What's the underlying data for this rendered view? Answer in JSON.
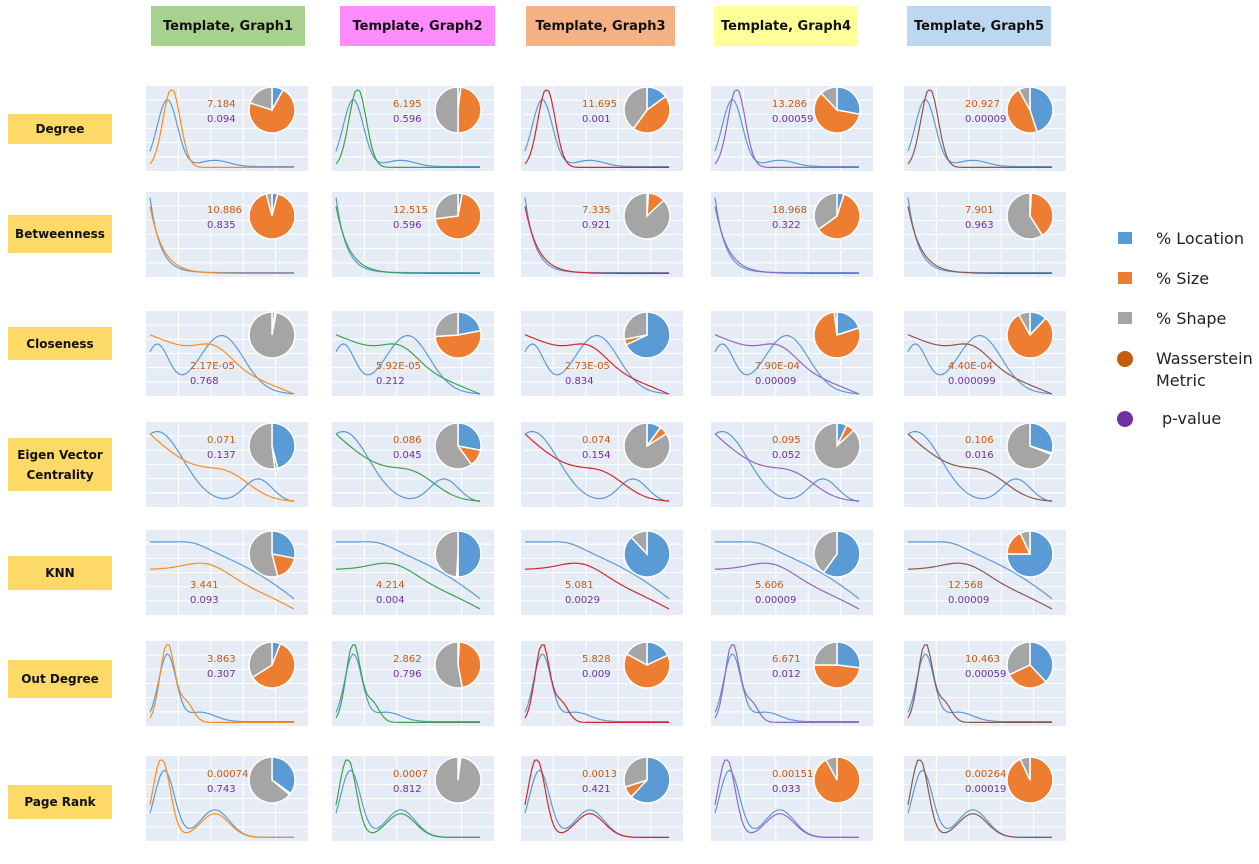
{
  "legend": {
    "location": "% Location",
    "size": "% Size",
    "shape": "% Shape",
    "wasserstein": "Wasserstein Metric",
    "pvalue": "p-value",
    "colors": {
      "location": "#5b9bd5",
      "size": "#ed7d31",
      "shape": "#a5a5a5",
      "wasserstein": "#c55a11",
      "pvalue": "#7030a0"
    }
  },
  "templates": [
    {
      "label": "Template, Graph1",
      "color": "#a9d18e",
      "line_color": "#ff8c1a"
    },
    {
      "label": "Template, Graph2",
      "color": "#ff8cff",
      "line_color": "#3ca34a"
    },
    {
      "label": "Template, Graph3",
      "color": "#f4b183",
      "line_color": "#d62728"
    },
    {
      "label": "Template, Graph4",
      "color": "#ffff99",
      "line_color": "#9467bd"
    },
    {
      "label": "Template, Graph5",
      "color": "#bdd7ee",
      "line_color": "#8c564b"
    }
  ],
  "metrics": [
    "Degree",
    "Betweenness",
    "Closeness",
    "Eigen Vector Centrality",
    "KNN",
    "Out Degree",
    "Page Rank"
  ],
  "chart_data": [
    {
      "type": "scatter",
      "row": "Degree",
      "col": 1,
      "title": "",
      "series": [
        {
          "name": "",
          "values": []
        }
      ],
      "wasserstein": "7.184",
      "pvalue": "0.094",
      "pie": {
        "location": 8,
        "size": 72,
        "shape": 20
      }
    },
    {
      "type": "scatter",
      "row": "Degree",
      "col": 2,
      "wasserstein": "6.195",
      "pvalue": "0.596",
      "pie": {
        "location": 2,
        "size": 48,
        "shape": 50
      }
    },
    {
      "type": "scatter",
      "row": "Degree",
      "col": 3,
      "wasserstein": "11.695",
      "pvalue": "0.001",
      "pie": {
        "location": 15,
        "size": 45,
        "shape": 40
      }
    },
    {
      "type": "scatter",
      "row": "Degree",
      "col": 4,
      "wasserstein": "13.286",
      "pvalue": "0.00059",
      "pie": {
        "location": 28,
        "size": 60,
        "shape": 12
      }
    },
    {
      "type": "scatter",
      "row": "Degree",
      "col": 5,
      "wasserstein": "20.927",
      "pvalue": "0.00009",
      "pie": {
        "location": 45,
        "size": 47,
        "shape": 8
      }
    },
    {
      "type": "scatter",
      "row": "Betweenness",
      "col": 1,
      "wasserstein": "10.886",
      "pvalue": "0.835",
      "pie": {
        "location": 4,
        "size": 92,
        "shape": 4
      }
    },
    {
      "type": "scatter",
      "row": "Betweenness",
      "col": 2,
      "wasserstein": "12.515",
      "pvalue": "0.596",
      "pie": {
        "location": 3,
        "size": 70,
        "shape": 27
      }
    },
    {
      "type": "scatter",
      "row": "Betweenness",
      "col": 3,
      "wasserstein": "7.335",
      "pvalue": "0.921",
      "pie": {
        "location": 1,
        "size": 12,
        "shape": 87
      }
    },
    {
      "type": "scatter",
      "row": "Betweenness",
      "col": 4,
      "wasserstein": "18.968",
      "pvalue": "0.322",
      "pie": {
        "location": 5,
        "size": 60,
        "shape": 35
      }
    },
    {
      "type": "scatter",
      "row": "Betweenness",
      "col": 5,
      "wasserstein": "7.901",
      "pvalue": "0.963",
      "pie": {
        "location": 1,
        "size": 40,
        "shape": 59
      }
    },
    {
      "type": "scatter",
      "row": "Closeness",
      "col": 1,
      "wasserstein": "2.17E-05",
      "pvalue": "0.768",
      "pie": {
        "location": 2,
        "size": 1,
        "shape": 97
      }
    },
    {
      "type": "scatter",
      "row": "Closeness",
      "col": 2,
      "wasserstein": "5.92E-05",
      "pvalue": "0.212",
      "pie": {
        "location": 22,
        "size": 52,
        "shape": 26
      }
    },
    {
      "type": "scatter",
      "row": "Closeness",
      "col": 3,
      "wasserstein": "2.73E-05",
      "pvalue": "0.834",
      "pie": {
        "location": 68,
        "size": 4,
        "shape": 28
      }
    },
    {
      "type": "scatter",
      "row": "Closeness",
      "col": 4,
      "wasserstein": "7.90E-04",
      "pvalue": "0.00009",
      "pie": {
        "location": 20,
        "size": 78,
        "shape": 2
      }
    },
    {
      "type": "scatter",
      "row": "Closeness",
      "col": 5,
      "wasserstein": "4.40E-04",
      "pvalue": "0.000099",
      "pie": {
        "location": 12,
        "size": 80,
        "shape": 8
      }
    },
    {
      "type": "scatter",
      "row": "Eigen Vector Centrality",
      "col": 1,
      "wasserstein": "0.071",
      "pvalue": "0.137",
      "pie": {
        "location": 46,
        "size": 2,
        "shape": 52
      }
    },
    {
      "type": "scatter",
      "row": "Eigen Vector Centrality",
      "col": 2,
      "wasserstein": "0.086",
      "pvalue": "0.045",
      "pie": {
        "location": 28,
        "size": 12,
        "shape": 60
      }
    },
    {
      "type": "scatter",
      "row": "Eigen Vector Centrality",
      "col": 3,
      "wasserstein": "0.074",
      "pvalue": "0.154",
      "pie": {
        "location": 10,
        "size": 6,
        "shape": 84
      }
    },
    {
      "type": "scatter",
      "row": "Eigen Vector Centrality",
      "col": 4,
      "wasserstein": "0.095",
      "pvalue": "0.052",
      "pie": {
        "location": 7,
        "size": 6,
        "shape": 87
      }
    },
    {
      "type": "scatter",
      "row": "Eigen Vector Centrality",
      "col": 5,
      "wasserstein": "0.106",
      "pvalue": "0.016",
      "pie": {
        "location": 30,
        "size": 1,
        "shape": 69
      }
    },
    {
      "type": "scatter",
      "row": "KNN",
      "col": 1,
      "wasserstein": "3.441",
      "pvalue": "0.093",
      "pie": {
        "location": 28,
        "size": 18,
        "shape": 54
      }
    },
    {
      "type": "scatter",
      "row": "KNN",
      "col": 2,
      "wasserstein": "4.214",
      "pvalue": "0.004",
      "pie": {
        "location": 50,
        "size": 1,
        "shape": 49
      }
    },
    {
      "type": "scatter",
      "row": "KNN",
      "col": 3,
      "wasserstein": "5.081",
      "pvalue": "0.0029",
      "pie": {
        "location": 88,
        "size": 0,
        "shape": 12
      }
    },
    {
      "type": "scatter",
      "row": "KNN",
      "col": 4,
      "wasserstein": "5.606",
      "pvalue": "0.00009",
      "pie": {
        "location": 60,
        "size": 0,
        "shape": 40
      }
    },
    {
      "type": "scatter",
      "row": "KNN",
      "col": 5,
      "wasserstein": "12.568",
      "pvalue": "0.00009",
      "pie": {
        "location": 75,
        "size": 18,
        "shape": 7
      }
    },
    {
      "type": "scatter",
      "row": "Out Degree",
      "col": 1,
      "wasserstein": "3.863",
      "pvalue": "0.307",
      "pie": {
        "location": 6,
        "size": 60,
        "shape": 34
      }
    },
    {
      "type": "scatter",
      "row": "Out Degree",
      "col": 2,
      "wasserstein": "2.862",
      "pvalue": "0.796",
      "pie": {
        "location": 1,
        "size": 46,
        "shape": 53
      }
    },
    {
      "type": "scatter",
      "row": "Out Degree",
      "col": 3,
      "wasserstein": "5.828",
      "pvalue": "0.009",
      "pie": {
        "location": 18,
        "size": 65,
        "shape": 17
      }
    },
    {
      "type": "scatter",
      "row": "Out Degree",
      "col": 4,
      "wasserstein": "6.671",
      "pvalue": "0.012",
      "pie": {
        "location": 27,
        "size": 48,
        "shape": 25
      }
    },
    {
      "type": "scatter",
      "row": "Out Degree",
      "col": 5,
      "wasserstein": "10.463",
      "pvalue": "0.00059",
      "pie": {
        "location": 38,
        "size": 30,
        "shape": 32
      }
    },
    {
      "type": "scatter",
      "row": "Page Rank",
      "col": 1,
      "wasserstein": "0.00074",
      "pvalue": "0.743",
      "pie": {
        "location": 35,
        "size": 1,
        "shape": 64
      }
    },
    {
      "type": "scatter",
      "row": "Page Rank",
      "col": 2,
      "wasserstein": "0.0007",
      "pvalue": "0.812",
      "pie": {
        "location": 1,
        "size": 1,
        "shape": 98
      }
    },
    {
      "type": "scatter",
      "row": "Page Rank",
      "col": 3,
      "wasserstein": "0.0013",
      "pvalue": "0.421",
      "pie": {
        "location": 62,
        "size": 8,
        "shape": 30
      }
    },
    {
      "type": "scatter",
      "row": "Page Rank",
      "col": 4,
      "wasserstein": "0.00151",
      "pvalue": "0.033",
      "pie": {
        "location": 0,
        "size": 92,
        "shape": 8
      }
    },
    {
      "type": "scatter",
      "row": "Page Rank",
      "col": 5,
      "wasserstein": "0.00264",
      "pvalue": "0.00019",
      "pie": {
        "location": 0,
        "size": 93,
        "shape": 7
      }
    }
  ]
}
